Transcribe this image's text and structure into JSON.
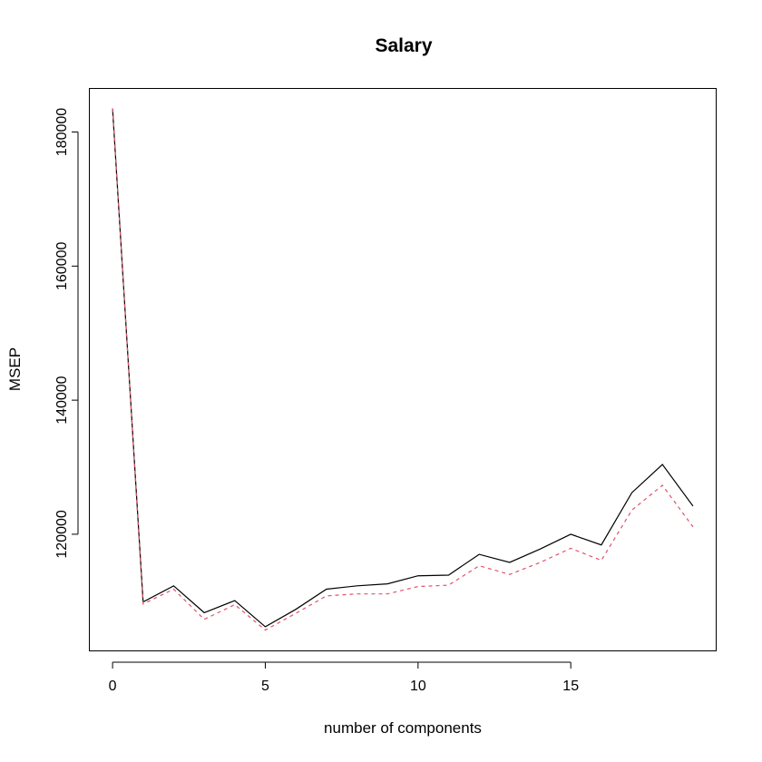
{
  "chart_data": {
    "type": "line",
    "title": "Salary",
    "xlabel": "number of components",
    "ylabel": "MSEP",
    "x": [
      0,
      1,
      2,
      3,
      4,
      5,
      6,
      7,
      8,
      9,
      10,
      11,
      12,
      13,
      14,
      15,
      16,
      17,
      18,
      19
    ],
    "xlim": [
      -0.76,
      19.76
    ],
    "ylim": [
      102600,
      186500
    ],
    "xticks": [
      0,
      5,
      10,
      15
    ],
    "yticks": [
      120000,
      140000,
      160000,
      180000
    ],
    "xtick_labels": [
      "0",
      "5",
      "10",
      "15"
    ],
    "ytick_labels": [
      "120000",
      "140000",
      "160000",
      "180000"
    ],
    "grid": false,
    "legend": "none",
    "series": [
      {
        "line_style": "solid",
        "color": "#000000",
        "values": [
          183500,
          109900,
          112300,
          108300,
          110100,
          106200,
          108800,
          111800,
          112300,
          112600,
          113800,
          113900,
          117000,
          115800,
          117800,
          120000,
          118400,
          126200,
          130400,
          124200
        ]
      },
      {
        "line_style": "dashed",
        "color": "#DF536B",
        "values": [
          183500,
          109600,
          111800,
          107300,
          109500,
          105700,
          108200,
          110800,
          111100,
          111100,
          112200,
          112400,
          115300,
          114000,
          115800,
          117900,
          116100,
          123600,
          127300,
          121100
        ]
      }
    ]
  }
}
